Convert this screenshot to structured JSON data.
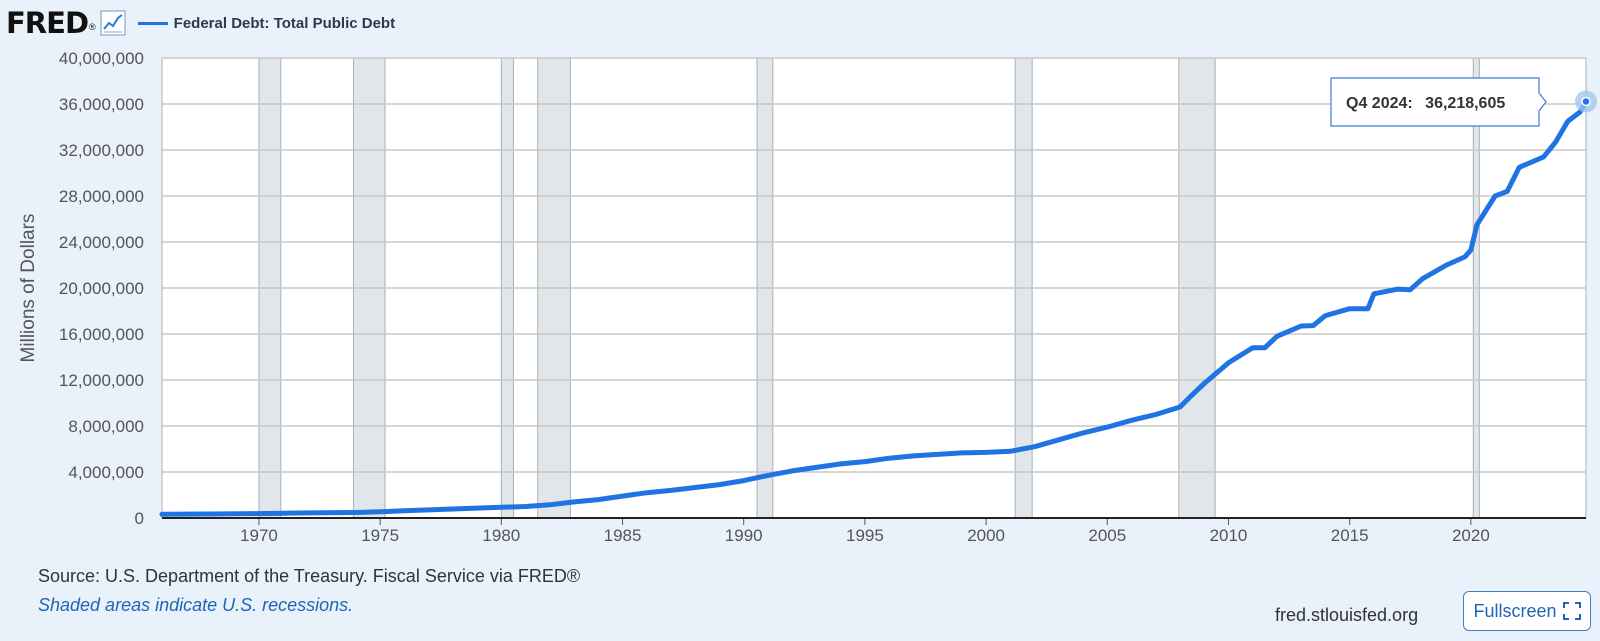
{
  "header": {
    "logo_text": "FRED",
    "logo_mark": "®",
    "logo_icon": "line-graph-icon",
    "series_title": "Federal Debt: Total Public Debt"
  },
  "colors": {
    "line": "#1f73e3",
    "recession_fill": "#e1e6ea",
    "recession_edge": "#a8b0b8",
    "grid": "#c8c8c8",
    "background": "#e9f1fa"
  },
  "tooltip": {
    "period": "Q4 2024:",
    "value": "36,218,605"
  },
  "chart_data": {
    "type": "line",
    "title": "Federal Debt: Total Public Debt",
    "ylabel": "Millions of Dollars",
    "xlim": [
      1966,
      2024.75
    ],
    "ylim": [
      0,
      40000000
    ],
    "grid": true,
    "legend": "top-left",
    "y_ticks": [
      0,
      4000000,
      8000000,
      12000000,
      16000000,
      20000000,
      24000000,
      28000000,
      32000000,
      36000000,
      40000000
    ],
    "y_tick_labels": [
      "0",
      "4,000,000",
      "8,000,000",
      "12,000,000",
      "16,000,000",
      "20,000,000",
      "24,000,000",
      "28,000,000",
      "32,000,000",
      "36,000,000",
      "40,000,000"
    ],
    "x_ticks": [
      1970,
      1975,
      1980,
      1985,
      1990,
      1995,
      2000,
      2005,
      2010,
      2015,
      2020
    ],
    "x_tick_labels": [
      "1970",
      "1975",
      "1980",
      "1985",
      "1990",
      "1995",
      "2000",
      "2005",
      "2010",
      "2015",
      "2020"
    ],
    "recessions": [
      [
        1970.0,
        1970.9
      ],
      [
        1973.9,
        1975.2
      ],
      [
        1980.0,
        1980.5
      ],
      [
        1981.5,
        1982.85
      ],
      [
        1990.55,
        1991.2
      ],
      [
        2001.2,
        2001.9
      ],
      [
        2007.95,
        2009.45
      ],
      [
        2020.1,
        2020.35
      ]
    ],
    "series": [
      {
        "name": "Federal Debt: Total Public Debt",
        "x": [
          1966,
          1968,
          1970,
          1972,
          1974,
          1975,
          1976,
          1978,
          1980,
          1981,
          1982,
          1983,
          1984,
          1985,
          1986,
          1987,
          1988,
          1989,
          1990,
          1991,
          1992,
          1993,
          1994,
          1995,
          1996,
          1997,
          1998,
          1999,
          2000,
          2001,
          2002,
          2003,
          2004,
          2005,
          2006,
          2007,
          2008,
          2008.5,
          2009,
          2010,
          2011,
          2011.5,
          2012,
          2013,
          2013.5,
          2014,
          2015,
          2015.75,
          2016,
          2017,
          2017.5,
          2018,
          2019,
          2019.75,
          2020,
          2020.25,
          2021,
          2021.5,
          2022,
          2023,
          2023.5,
          2024,
          2024.5,
          2024.75
        ],
        "values": [
          320000,
          350000,
          380000,
          440000,
          480000,
          540000,
          630000,
          780000,
          930000,
          1000000,
          1150000,
          1400000,
          1600000,
          1900000,
          2200000,
          2400000,
          2650000,
          2900000,
          3250000,
          3700000,
          4100000,
          4400000,
          4700000,
          4900000,
          5200000,
          5400000,
          5530000,
          5660000,
          5700000,
          5800000,
          6200000,
          6800000,
          7400000,
          7900000,
          8500000,
          9000000,
          9650000,
          10700000,
          11700000,
          13500000,
          14800000,
          14800000,
          15800000,
          16700000,
          16730000,
          17600000,
          18200000,
          18200000,
          19500000,
          19900000,
          19850000,
          20800000,
          22000000,
          22700000,
          23300000,
          25500000,
          28000000,
          28400000,
          30500000,
          31400000,
          32700000,
          34500000,
          35300000,
          36218605
        ]
      }
    ]
  },
  "footer": {
    "source": "Source: U.S. Department of the Treasury. Fiscal Service via FRED®",
    "note": "Shaded areas indicate U.S. recessions.",
    "url": "fred.stlouisfed.org",
    "fullscreen_label": "Fullscreen"
  }
}
